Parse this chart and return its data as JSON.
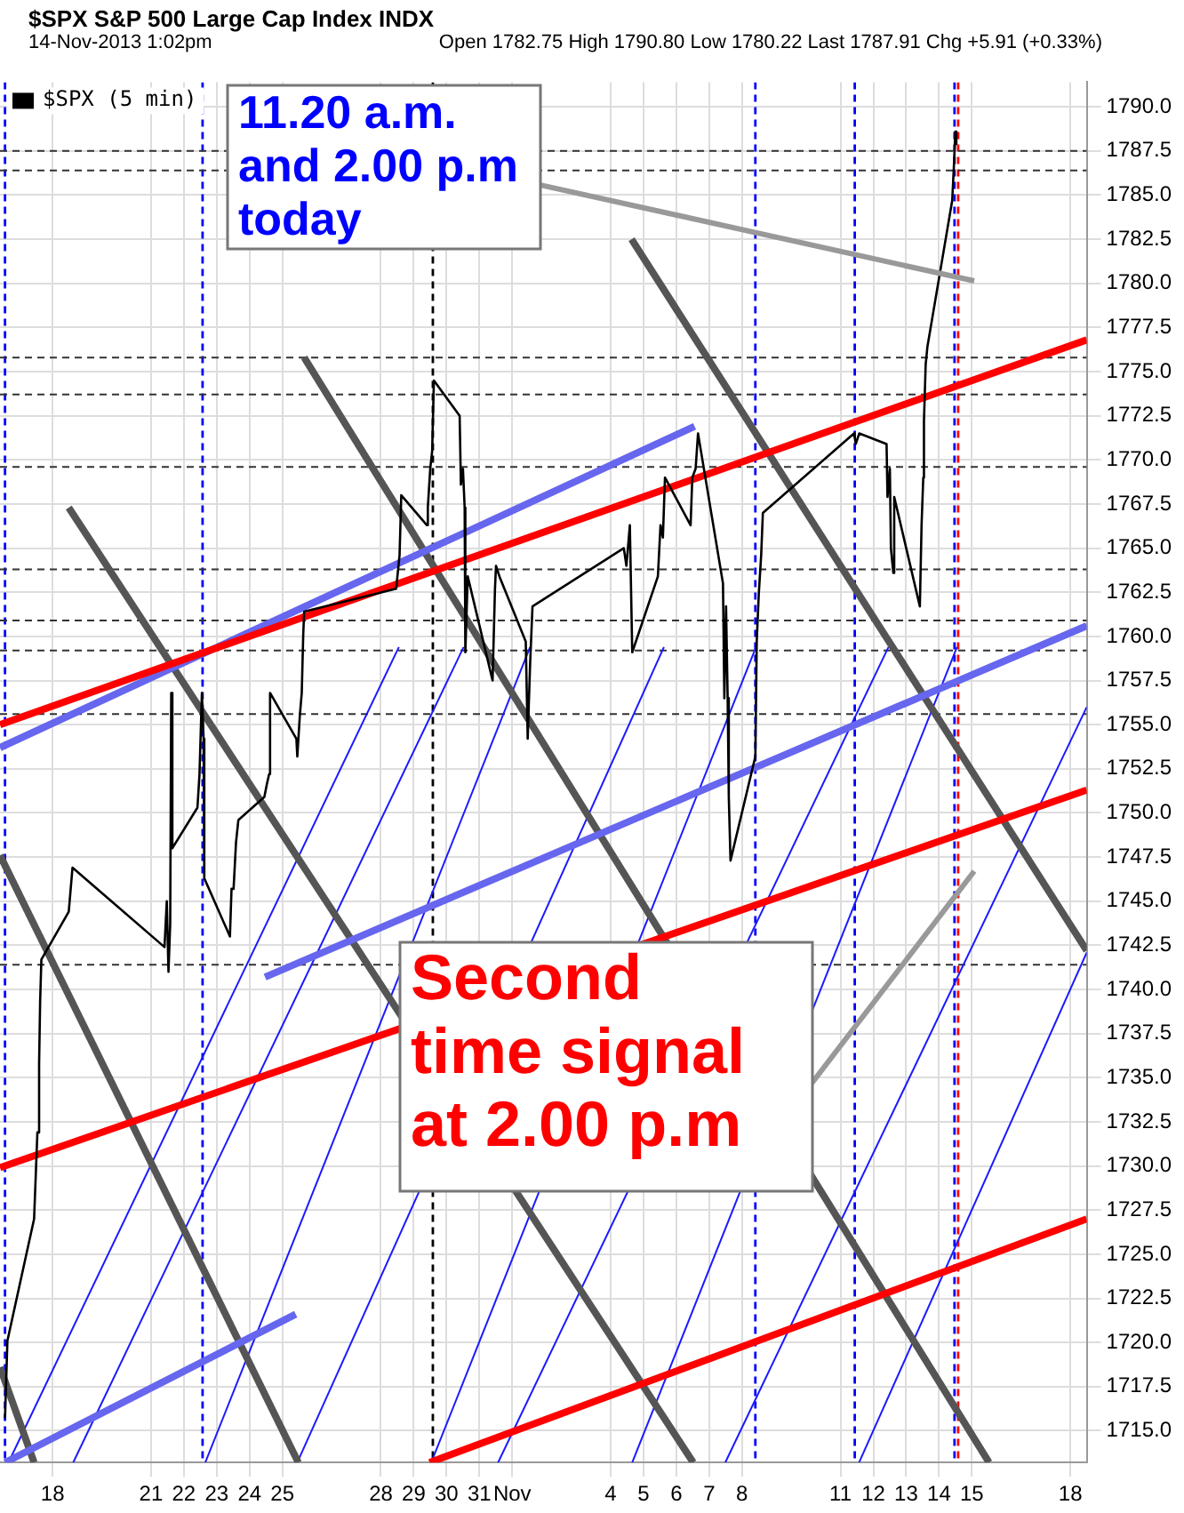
{
  "chart_data": {
    "type": "line",
    "title": "$SPX S&P 500 Large Cap Index INDX",
    "subtitle": "14-Nov-2013 1:02pm",
    "annotations": [
      "Open 1782.75 High 1790.80 Low 1780.22 Last 1787.91 Chg +5.91 (+0.33%)",
      "11.20 a.m.\nand 2.00 p.m\ntoday",
      "Second\ntime signal\nat 2.00 p.m"
    ],
    "xlim": [
      "2013-10-16T09:35",
      "2013-11-18T12:00"
    ],
    "ylim": [
      1713.2,
      1791.4
    ],
    "xticks": [
      {
        "value": "2013-10-18",
        "label": "18"
      },
      {
        "value": "2013-10-21",
        "label": "21"
      },
      {
        "value": "2013-10-22",
        "label": "22"
      },
      {
        "value": "2013-10-23",
        "label": "23"
      },
      {
        "value": "2013-10-24",
        "label": "24"
      },
      {
        "value": "2013-10-25",
        "label": "25"
      },
      {
        "value": "2013-10-28",
        "label": "28"
      },
      {
        "value": "2013-10-29",
        "label": "29"
      },
      {
        "value": "2013-10-30",
        "label": "30"
      },
      {
        "value": "2013-10-31",
        "label": "31"
      },
      {
        "value": "2013-11-01",
        "label": "Nov"
      },
      {
        "value": "2013-11-04",
        "label": "4"
      },
      {
        "value": "2013-11-05",
        "label": "5"
      },
      {
        "value": "2013-11-06",
        "label": "6"
      },
      {
        "value": "2013-11-07",
        "label": "7"
      },
      {
        "value": "2013-11-08",
        "label": "8"
      },
      {
        "value": "2013-11-11",
        "label": "11"
      },
      {
        "value": "2013-11-12",
        "label": "12"
      },
      {
        "value": "2013-11-13",
        "label": "13"
      },
      {
        "value": "2013-11-14",
        "label": "14"
      },
      {
        "value": "2013-11-15",
        "label": "15"
      },
      {
        "value": "2013-11-18",
        "label": "18"
      }
    ],
    "yticks": [
      {
        "value": 1715,
        "label": "1715.0"
      },
      {
        "value": 1717.5,
        "label": "1717.5"
      },
      {
        "value": 1720,
        "label": "1720.0"
      },
      {
        "value": 1722.5,
        "label": "1722.5"
      },
      {
        "value": 1725,
        "label": "1725.0"
      },
      {
        "value": 1727.5,
        "label": "1727.5"
      },
      {
        "value": 1730,
        "label": "1730.0"
      },
      {
        "value": 1732.5,
        "label": "1732.5"
      },
      {
        "value": 1735,
        "label": "1735.0"
      },
      {
        "value": 1737.5,
        "label": "1737.5"
      },
      {
        "value": 1740,
        "label": "1740.0"
      },
      {
        "value": 1742.5,
        "label": "1742.5"
      },
      {
        "value": 1745,
        "label": "1745.0"
      },
      {
        "value": 1747.5,
        "label": "1747.5"
      },
      {
        "value": 1750,
        "label": "1750.0"
      },
      {
        "value": 1752.5,
        "label": "1752.5"
      },
      {
        "value": 1755,
        "label": "1755.0"
      },
      {
        "value": 1757.5,
        "label": "1757.5"
      },
      {
        "value": 1760,
        "label": "1760.0"
      },
      {
        "value": 1762.5,
        "label": "1762.5"
      },
      {
        "value": 1765,
        "label": "1765.0"
      },
      {
        "value": 1767.5,
        "label": "1767.5"
      },
      {
        "value": 1770,
        "label": "1770.0"
      },
      {
        "value": 1772.5,
        "label": "1772.5"
      },
      {
        "value": 1775,
        "label": "1775.0"
      },
      {
        "value": 1777.5,
        "label": "1777.5"
      },
      {
        "value": 1780,
        "label": "1780.0"
      },
      {
        "value": 1782.5,
        "label": "1782.5"
      },
      {
        "value": 1785,
        "label": "1785.0"
      },
      {
        "value": 1787.5,
        "label": "1787.5"
      },
      {
        "value": 1790,
        "label": "1790.0"
      }
    ],
    "grid": true,
    "legend": "top left",
    "marker": "none",
    "series": [
      {
        "name": "$SPX (5 min)",
        "color": "#000000",
        "x": [
          "2013-10-16T13:15",
          "2013-10-16T15:00",
          "2013-10-17T10:30",
          "2013-10-17T12:55",
          "2013-10-17T14:10",
          "2013-10-17T14:55",
          "2013-10-17T15:50",
          "2013-10-18T11:50",
          "2013-10-18T14:35",
          "2013-10-21T09:50",
          "2013-10-21T11:30",
          "2013-10-21T12:45",
          "2013-10-21T14:00",
          "2013-10-21T14:45",
          "2013-10-21T15:35",
          "2013-10-22T09:55",
          "2013-10-22T11:25",
          "2013-10-22T13:10",
          "2013-10-22T14:25",
          "2013-10-22T14:55",
          "2013-10-23T09:40",
          "2013-10-23T10:50",
          "2013-10-23T12:20",
          "2013-10-23T14:05",
          "2013-10-23T15:50",
          "2013-10-24T10:50",
          "2013-10-24T12:35",
          "2013-10-24T14:20",
          "2013-10-24T15:00",
          "2013-10-25T10:15",
          "2013-10-25T10:55",
          "2013-10-25T12:45",
          "2013-10-25T14:10",
          "2013-10-25T15:15",
          "2013-10-25T15:55",
          "2013-10-28T11:10",
          "2013-10-28T13:40",
          "2013-10-28T14:55",
          "2013-10-29T09:40",
          "2013-10-29T10:20",
          "2013-10-29T12:05",
          "2013-10-29T13:30",
          "2013-10-29T14:45",
          "2013-10-30T09:35",
          "2013-10-30T10:30",
          "2013-10-30T12:00",
          "2013-10-30T13:15",
          "2013-10-30T13:45",
          "2013-10-30T15:30",
          "2013-10-31T09:40",
          "2013-10-31T11:25",
          "2013-10-31T12:10",
          "2013-10-31T14:40",
          "2013-11-01T09:55",
          "2013-11-01T11:20",
          "2013-11-01T13:05",
          "2013-11-01T14:50",
          "2013-11-04T09:35",
          "2013-11-04T11:30",
          "2013-11-04T14:00",
          "2013-11-04T15:45",
          "2013-11-05T10:30",
          "2013-11-05T12:25",
          "2013-11-05T14:10",
          "2013-11-05T15:40",
          "2013-11-06T10:25",
          "2013-11-06T11:40",
          "2013-11-06T14:05",
          "2013-11-06T15:50",
          "2013-11-07T10:05",
          "2013-11-07T11:05",
          "2013-11-07T12:20",
          "2013-11-07T13:30",
          "2013-11-07T14:20",
          "2013-11-07T15:35",
          "2013-11-08T09:45",
          "2013-11-08T10:45",
          "2013-11-08T12:15",
          "2013-11-08T14:00",
          "2013-11-08T15:15",
          "2013-11-11T09:55",
          "2013-11-11T11:10",
          "2013-11-11T13:40",
          "2013-11-12T09:40",
          "2013-11-12T10:20",
          "2013-11-12T12:05",
          "2013-11-12T12:50",
          "2013-11-12T14:35",
          "2013-11-12T15:15",
          "2013-11-13T10:00",
          "2013-11-13T11:15",
          "2013-11-13T12:30",
          "2013-11-13T13:00",
          "2013-11-13T14:15",
          "2013-11-13T15:30",
          "2013-11-14T09:40",
          "2013-11-14T10:55",
          "2013-11-14T11:55",
          "2013-11-14T12:40"
        ],
        "values": [
          1715.7,
          1720.1,
          1727.0,
          1731.9,
          1735.8,
          1739.3,
          1741.7,
          1744.4,
          1746.9,
          1742.4,
          1745.0,
          1741.0,
          1743.7,
          1756.8,
          1748.0,
          1750.3,
          1752.2,
          1756.8,
          1754.2,
          1746.3,
          1743.0,
          1745.7,
          1745.7,
          1748.3,
          1749.6,
          1750.9,
          1751.6,
          1752.2,
          1756.8,
          1754.2,
          1753.2,
          1755.5,
          1756.8,
          1760.1,
          1761.4,
          1762.7,
          1764.6,
          1768.0,
          1766.3,
          1767.3,
          1769.5,
          1770.5,
          1774.5,
          1772.5,
          1768.6,
          1769.5,
          1767.3,
          1759.1,
          1763.4,
          1757.5,
          1762.7,
          1764.0,
          1763.4,
          1759.7,
          1754.2,
          1758.4,
          1761.7,
          1765.0,
          1764.0,
          1766.3,
          1759.1,
          1763.4,
          1766.3,
          1765.6,
          1769.0,
          1766.3,
          1769.0,
          1769.5,
          1771.5,
          1763.0,
          1756.5,
          1761.7,
          1756.5,
          1750.9,
          1747.3,
          1753.2,
          1759.7,
          1762.4,
          1764.6,
          1767.0,
          1771.5,
          1770.9,
          1771.5,
          1770.9,
          1767.9,
          1769.5,
          1765.0,
          1763.6,
          1767.9,
          1761.7,
          1766.3,
          1769.0,
          1772.2,
          1775.4,
          1776.4,
          1784.7,
          1786.7,
          1788.6,
          1787.9
        ]
      },
      {
        "type": "line",
        "color": "#ff0000",
        "x": [
          "2013-10-16T09:35",
          "2013-11-18T12:00"
        ],
        "values": [
          1755.0,
          1776.8
        ]
      },
      {
        "type": "line",
        "color": "#ff0000",
        "x": [
          "2013-10-16T09:35",
          "2013-11-18T12:00"
        ],
        "values": [
          1729.9,
          1751.3
        ]
      },
      {
        "type": "line",
        "color": "#ff0000",
        "x": [
          "2013-10-29T11:35",
          "2013-11-18T12:00"
        ],
        "values": [
          1713.2,
          1727.0
        ]
      },
      {
        "type": "line",
        "color": "#6666ee",
        "x": [
          "2013-10-16T09:35",
          "2013-11-06T13:20"
        ],
        "values": [
          1753.7,
          1771.9
        ]
      },
      {
        "type": "line",
        "color": "#6666ee",
        "x": [
          "2013-10-24T11:20",
          "2013-11-18T12:00"
        ],
        "values": [
          1740.7,
          1760.6
        ]
      },
      {
        "type": "line",
        "color": "#6666ee",
        "x": [
          "2013-10-16T13:15",
          "2013-10-25T09:45"
        ],
        "values": [
          1713.2,
          1721.6
        ]
      },
      {
        "type": "line",
        "color": "#555555",
        "x": [
          "2013-10-16T09:35",
          "2013-10-17T10:30"
        ],
        "values": [
          1718.6,
          1713.2
        ]
      },
      {
        "type": "line",
        "color": "#555555",
        "x": [
          "2013-10-16T09:35",
          "2013-10-25T11:40"
        ],
        "values": [
          1747.6,
          1713.2
        ]
      },
      {
        "type": "line",
        "color": "#555555",
        "x": [
          "2013-10-18T11:50",
          "2013-11-06T12:20"
        ],
        "values": [
          1767.3,
          1713.2
        ]
      },
      {
        "type": "line",
        "color": "#555555",
        "x": [
          "2013-10-25T15:55",
          "2013-11-15T12:35"
        ],
        "values": [
          1775.8,
          1713.2
        ]
      },
      {
        "type": "line",
        "color": "#555555",
        "x": [
          "2013-11-04T15:15",
          "2013-11-18T12:00"
        ],
        "values": [
          1782.5,
          1742.2
        ]
      },
      {
        "type": "line",
        "color": "#1a1aff",
        "x": [
          "2013-10-16T15:45",
          "2013-10-28T13:10"
        ],
        "values": [
          1713.2,
          1759.4
        ]
      },
      {
        "type": "line",
        "color": "#1a1aff",
        "x": [
          "2013-10-18T15:05",
          "2013-10-30T12:30"
        ],
        "values": [
          1713.2,
          1759.4
        ]
      },
      {
        "type": "line",
        "color": "#1a1aff",
        "x": [
          "2013-10-22T15:40",
          "2013-11-01T13:05"
        ],
        "values": [
          1713.2,
          1759.4
        ]
      },
      {
        "type": "line",
        "color": "#1a1aff",
        "x": [
          "2013-10-25T10:55",
          "2013-11-05T14:55"
        ],
        "values": [
          1713.2,
          1759.4
        ]
      },
      {
        "type": "line",
        "color": "#1a1aff",
        "x": [
          "2013-10-29T12:50",
          "2013-11-08T10:15"
        ],
        "values": [
          1713.2,
          1759.4
        ]
      },
      {
        "type": "line",
        "color": "#1a1aff",
        "x": [
          "2013-10-31T13:40",
          "2013-11-12T11:05"
        ],
        "values": [
          1713.2,
          1759.4
        ]
      },
      {
        "type": "line",
        "color": "#1a1aff",
        "x": [
          "2013-11-04T15:45",
          "2013-11-14T13:10"
        ],
        "values": [
          1713.2,
          1759.4
        ]
      },
      {
        "type": "line",
        "color": "#1a1aff",
        "x": [
          "2013-11-07T11:45",
          "2013-11-18T12:00"
        ],
        "values": [
          1713.2,
          1756.0
        ]
      },
      {
        "type": "line",
        "color": "#1a1aff",
        "x": [
          "2013-11-11T13:35",
          "2013-11-18T12:00"
        ],
        "values": [
          1713.2,
          1742.1
        ]
      }
    ],
    "ref_lines": [
      {
        "axis": "x",
        "value": "2013-10-16T13:15",
        "color": "#0000ff",
        "line_style": "dashed"
      },
      {
        "axis": "x",
        "value": "2013-10-22T13:40",
        "color": "#0000ff",
        "line_style": "dashed"
      },
      {
        "axis": "x",
        "value": "2013-10-29T14:00",
        "color": "#000000",
        "line_style": "dashed"
      },
      {
        "axis": "x",
        "value": "2013-11-08T09:45",
        "color": "#0000ff",
        "line_style": "dashed"
      },
      {
        "axis": "x",
        "value": "2013-11-11T10:25",
        "color": "#0000ff",
        "line_style": "dashed"
      },
      {
        "axis": "x",
        "value": "2013-11-14T11:20",
        "color": "#0000ff",
        "line_style": "dashed"
      },
      {
        "axis": "x",
        "value": "2013-11-14T14:00",
        "color": "#ff0000",
        "line_style": "dashed"
      },
      {
        "axis": "y",
        "value": 1787.5,
        "color": "#333333",
        "line_style": "dashed"
      },
      {
        "axis": "y",
        "value": 1786.4,
        "color": "#333333",
        "line_style": "dashed"
      },
      {
        "axis": "y",
        "value": 1775.8,
        "color": "#333333",
        "line_style": "dashed"
      },
      {
        "axis": "y",
        "value": 1773.7,
        "color": "#333333",
        "line_style": "dashed"
      },
      {
        "axis": "y",
        "value": 1769.6,
        "color": "#333333",
        "line_style": "dashed"
      },
      {
        "axis": "y",
        "value": 1763.8,
        "color": "#333333",
        "line_style": "dashed"
      },
      {
        "axis": "y",
        "value": 1760.9,
        "color": "#333333",
        "line_style": "dashed"
      },
      {
        "axis": "y",
        "value": 1759.2,
        "color": "#333333",
        "line_style": "dashed"
      },
      {
        "axis": "y",
        "value": 1755.6,
        "color": "#333333",
        "line_style": "dashed"
      },
      {
        "axis": "y",
        "value": 1741.4,
        "color": "#333333",
        "line_style": "dashed"
      }
    ]
  }
}
